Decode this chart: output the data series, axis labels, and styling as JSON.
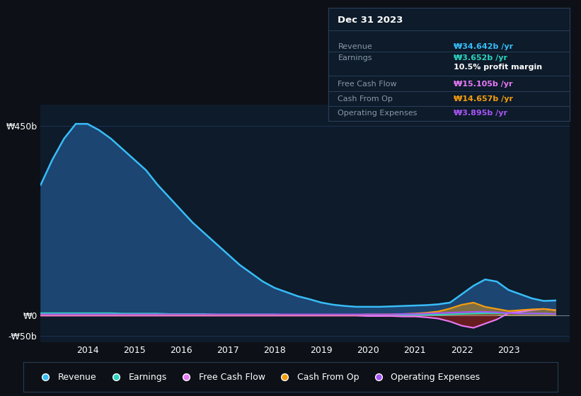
{
  "background_color": "#0d1117",
  "plot_bg_color": "#0d1b2a",
  "grid_color": "#1e3050",
  "title_box_date": "Dec 31 2023",
  "years": [
    2013.0,
    2013.25,
    2013.5,
    2013.75,
    2014.0,
    2014.25,
    2014.5,
    2014.75,
    2015.0,
    2015.25,
    2015.5,
    2015.75,
    2016.0,
    2016.25,
    2016.5,
    2016.75,
    2017.0,
    2017.25,
    2017.5,
    2017.75,
    2018.0,
    2018.25,
    2018.5,
    2018.75,
    2019.0,
    2019.25,
    2019.5,
    2019.75,
    2020.0,
    2020.25,
    2020.5,
    2020.75,
    2021.0,
    2021.25,
    2021.5,
    2021.75,
    2022.0,
    2022.25,
    2022.5,
    2022.75,
    2023.0,
    2023.25,
    2023.5,
    2023.75,
    2024.0
  ],
  "revenue": [
    310,
    370,
    420,
    455,
    455,
    440,
    420,
    395,
    370,
    345,
    310,
    280,
    250,
    220,
    195,
    170,
    145,
    120,
    100,
    80,
    65,
    55,
    45,
    38,
    30,
    25,
    22,
    20,
    20,
    20,
    21,
    22,
    23,
    24,
    26,
    30,
    50,
    70,
    85,
    80,
    60,
    50,
    40,
    34,
    35
  ],
  "earnings": [
    5,
    5,
    5,
    5,
    5,
    5,
    5,
    4,
    4,
    4,
    4,
    3,
    3,
    3,
    3,
    2,
    2,
    2,
    2,
    2,
    2,
    1,
    1,
    1,
    1,
    1,
    1,
    1,
    1,
    1,
    1,
    1,
    1,
    1,
    1,
    2,
    3,
    4,
    5,
    5,
    5,
    4,
    4,
    3.6,
    3
  ],
  "free_cash_flow": [
    -1,
    -1,
    -1,
    -1,
    -1,
    -1,
    -1,
    -1,
    -1,
    -1,
    -1,
    -1,
    -1,
    -1,
    -1,
    -1,
    -1,
    -1,
    -1,
    -1,
    -1,
    -1,
    -1,
    -1,
    -1,
    -1,
    -1,
    -1,
    -2,
    -2,
    -2,
    -3,
    -3,
    -5,
    -8,
    -15,
    -25,
    -30,
    -20,
    -10,
    5,
    8,
    12,
    15,
    12
  ],
  "cash_from_op": [
    1,
    1,
    1,
    1,
    1,
    1,
    1,
    1,
    1,
    1,
    1,
    1,
    1,
    1,
    1,
    1,
    1,
    1,
    1,
    1,
    1,
    1,
    1,
    1,
    1,
    1,
    1,
    1,
    2,
    2,
    2,
    3,
    4,
    6,
    9,
    16,
    25,
    30,
    20,
    15,
    10,
    12,
    14,
    15,
    12
  ],
  "operating_expenses": [
    2,
    2,
    2,
    2,
    2,
    2,
    2,
    2,
    2,
    2,
    2,
    2,
    2,
    2,
    2,
    2,
    2,
    2,
    2,
    2,
    2,
    2,
    2,
    2,
    2,
    2,
    2,
    2,
    2,
    2,
    2,
    3,
    3,
    4,
    5,
    6,
    7,
    8,
    8,
    7,
    5,
    4,
    4,
    4,
    3
  ],
  "revenue_color": "#38bdf8",
  "revenue_fill_color": "#1e4a7a",
  "earnings_color": "#2dd4bf",
  "free_cash_flow_color": "#e879f9",
  "cash_from_op_color": "#f59e0b",
  "operating_expenses_color": "#a855f7",
  "fcf_neg_fill_color": "#7f1d1d",
  "ylim": [
    -65,
    500
  ],
  "yticks": [
    -50,
    0,
    450
  ],
  "ytick_labels": [
    "-₩50b",
    "₩0",
    "₩450b"
  ],
  "xtick_years": [
    2014,
    2015,
    2016,
    2017,
    2018,
    2019,
    2020,
    2021,
    2022,
    2023
  ],
  "legend_items": [
    {
      "label": "Revenue",
      "color": "#38bdf8"
    },
    {
      "label": "Earnings",
      "color": "#2dd4bf"
    },
    {
      "label": "Free Cash Flow",
      "color": "#e879f9"
    },
    {
      "label": "Cash From Op",
      "color": "#f59e0b"
    },
    {
      "label": "Operating Expenses",
      "color": "#a855f7"
    }
  ],
  "info_box_bg": "#0d1b2a",
  "info_box_border": "#2a3f5a",
  "info_rows": [
    {
      "label": "Revenue",
      "value": "₩34.642b /yr",
      "value_color": "#38bdf8",
      "extra": ""
    },
    {
      "label": "Earnings",
      "value": "₩3.652b /yr",
      "value_color": "#2dd4bf",
      "extra": "10.5% profit margin"
    },
    {
      "label": "Free Cash Flow",
      "value": "₩15.105b /yr",
      "value_color": "#e879f9",
      "extra": ""
    },
    {
      "label": "Cash From Op",
      "value": "₩14.657b /yr",
      "value_color": "#f59e0b",
      "extra": ""
    },
    {
      "label": "Operating Expenses",
      "value": "₩3.895b /yr",
      "value_color": "#a855f7",
      "extra": ""
    }
  ]
}
